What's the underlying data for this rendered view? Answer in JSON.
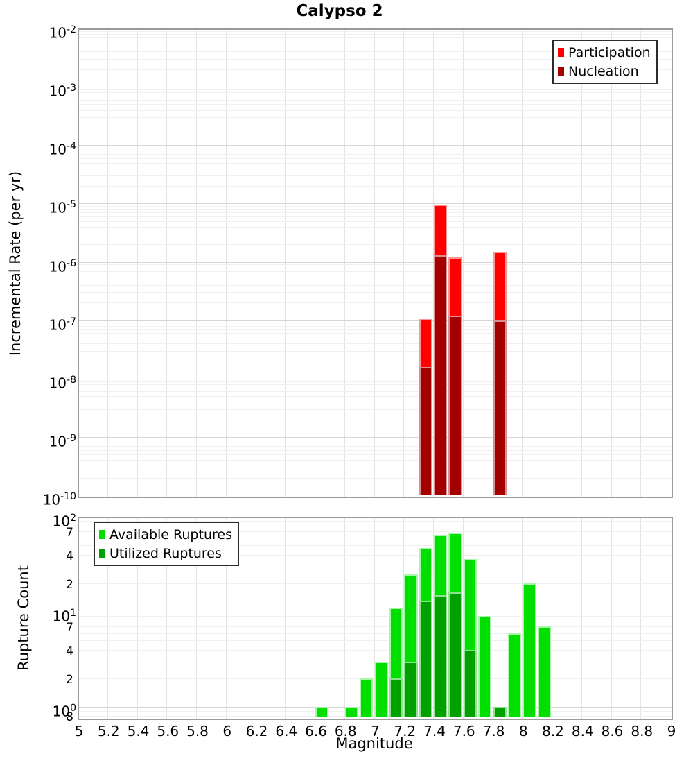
{
  "title": "Calypso 2",
  "axes": {
    "x": {
      "label": "Magnitude",
      "min": 5,
      "max": 9,
      "tick_step": 0.2,
      "tick_labels": [
        "5",
        "5.2",
        "5.4",
        "5.6",
        "5.8",
        "6",
        "6.2",
        "6.4",
        "6.6",
        "6.8",
        "7",
        "7.2",
        "7.4",
        "7.6",
        "7.8",
        "8",
        "8.2",
        "8.4",
        "8.6",
        "8.8",
        "9"
      ]
    },
    "top_y": {
      "label": "Incremental Rate (per yr)",
      "tick_exponents": [
        -2,
        -3,
        -4,
        -5,
        -6,
        -7,
        -8,
        -9,
        -10
      ]
    },
    "bottom_y": {
      "label": "Rupture Count",
      "major_tick_exponents": [
        2,
        1,
        0
      ],
      "minor_ticks": [
        {
          "label": "7",
          "value": 70
        },
        {
          "label": "4",
          "value": 40
        },
        {
          "label": "2",
          "value": 20
        },
        {
          "label": "7",
          "value": 7
        },
        {
          "label": "4",
          "value": 4
        },
        {
          "label": "2",
          "value": 2
        },
        {
          "label": "8",
          "value": 0.8
        }
      ]
    }
  },
  "legends": {
    "top": {
      "items": [
        {
          "label": "Participation",
          "color": "#FF0000"
        },
        {
          "label": "Nucleation",
          "color": "#A40000"
        }
      ]
    },
    "bottom": {
      "items": [
        {
          "label": "Available Ruptures",
          "color": "#00DF00"
        },
        {
          "label": "Utilized Ruptures",
          "color": "#00A000"
        }
      ]
    }
  },
  "chart_data": [
    {
      "type": "bar",
      "panel": "incremental-rate",
      "title": "Calypso 2",
      "xlabel": "Magnitude",
      "ylabel": "Incremental Rate (per yr)",
      "xlim": [
        5,
        9
      ],
      "ylim": [
        1e-10,
        0.01
      ],
      "yscale": "log",
      "bin_width": 0.1,
      "grid": true,
      "legend_position": "top-right",
      "series": [
        {
          "name": "Participation",
          "color": "#FF0000",
          "stroke": "#FF9595",
          "points": [
            [
              7.35,
              1.05e-07
            ],
            [
              7.45,
              9.5e-06
            ],
            [
              7.55,
              1.2e-06
            ],
            [
              7.85,
              1.5e-06
            ]
          ]
        },
        {
          "name": "Nucleation",
          "color": "#A40000",
          "stroke": "#D89090",
          "points": [
            [
              7.35,
              1.6e-08
            ],
            [
              7.45,
              1.3e-06
            ],
            [
              7.55,
              1.2e-07
            ],
            [
              7.85,
              1e-07
            ]
          ]
        }
      ]
    },
    {
      "type": "bar",
      "panel": "rupture-count",
      "xlabel": "Magnitude",
      "ylabel": "Rupture Count",
      "xlim": [
        5,
        9
      ],
      "ylim": [
        0.78,
        100
      ],
      "yscale": "log",
      "bin_width": 0.1,
      "grid": true,
      "legend_position": "top-left",
      "series": [
        {
          "name": "Available Ruptures",
          "color": "#00DF00",
          "stroke": "#A8F7A8",
          "points": [
            [
              6.65,
              1
            ],
            [
              6.85,
              1
            ],
            [
              6.95,
              2
            ],
            [
              7.05,
              3
            ],
            [
              7.15,
              11
            ],
            [
              7.25,
              25
            ],
            [
              7.35,
              47
            ],
            [
              7.45,
              65
            ],
            [
              7.55,
              68
            ],
            [
              7.65,
              36
            ],
            [
              7.75,
              9
            ],
            [
              7.85,
              1
            ],
            [
              7.95,
              6
            ],
            [
              8.05,
              20
            ],
            [
              8.15,
              7
            ]
          ]
        },
        {
          "name": "Utilized Ruptures",
          "color": "#00A000",
          "stroke": "#8FE08F",
          "points": [
            [
              7.15,
              2
            ],
            [
              7.25,
              3
            ],
            [
              7.35,
              13
            ],
            [
              7.45,
              15
            ],
            [
              7.55,
              16
            ],
            [
              7.65,
              4
            ],
            [
              7.85,
              1
            ]
          ]
        }
      ]
    }
  ]
}
